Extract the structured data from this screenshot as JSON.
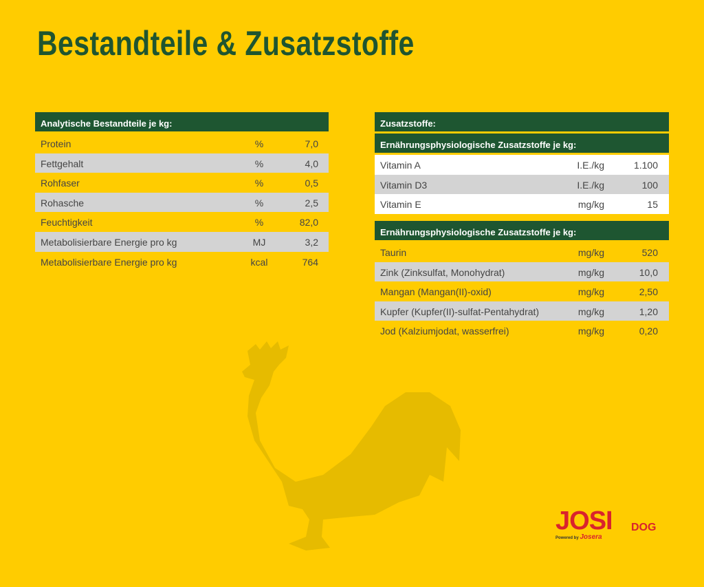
{
  "header": {
    "title": "Bestandteile & Zusatzstoffe"
  },
  "analytic_table": {
    "title": "Analytische Bestandteile je kg:",
    "rows": [
      [
        "Protein",
        "%",
        "7,0"
      ],
      [
        "Fettgehalt",
        "%",
        "4,0"
      ],
      [
        "Rohfaser",
        "%",
        "0,5"
      ],
      [
        "Rohasche",
        "%",
        "2,5"
      ],
      [
        "Feuchtigkeit",
        "%",
        "82,0"
      ],
      [
        "Metabolisierbare Energie pro kg",
        "MJ",
        "3,2"
      ],
      [
        "Metabolisierbare Energie pro kg",
        "kcal",
        "764"
      ]
    ]
  },
  "additives_table": {
    "title": "Zusatzstoffe:",
    "subtitle": "Ernährungsphysiologische Zusatzstoffe je kg:",
    "rows": [
      [
        "Vitamin A",
        "I.E./kg",
        "1.100"
      ],
      [
        "Vitamin D3",
        "I.E./kg",
        "100"
      ],
      [
        "Vitamin E",
        "mg/kg",
        "15"
      ]
    ]
  },
  "trace_table": {
    "title": "Ernährungsphysiologische Zusatzstoffe je kg:",
    "rows": [
      [
        "Taurin",
        "mg/kg",
        "520"
      ],
      [
        "Zink (Zinksulfat, Monohydrat)",
        "mg/kg",
        "10,0"
      ],
      [
        "Mangan (Mangan(II)-oxid)",
        "mg/kg",
        "2,50"
      ],
      [
        "Kupfer (Kupfer(II)-sulfat-Pentahydrat)",
        "mg/kg",
        "1,20"
      ],
      [
        "Jod (Kalziumjodat, wasserfrei)",
        "mg/kg",
        "0,20"
      ]
    ]
  },
  "logo": {
    "brand": "JOSI",
    "suffix": "DOG",
    "powered": "Powered by",
    "maker": "Josera"
  }
}
